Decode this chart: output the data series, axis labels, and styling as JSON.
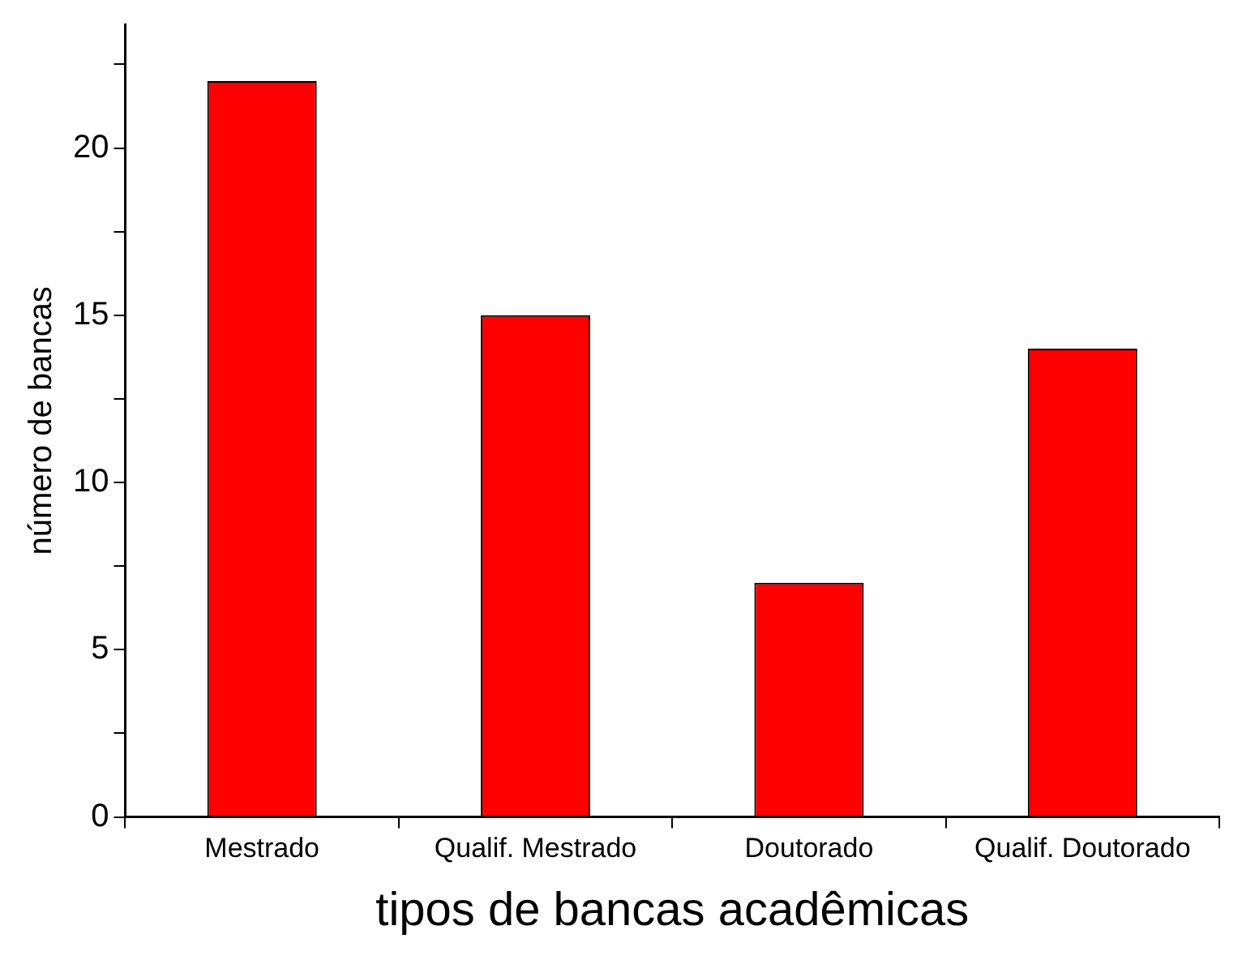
{
  "chart_data": {
    "type": "bar",
    "xlabel": "tipos de bancas acadêmicas",
    "ylabel": "número de bancas",
    "categories": [
      "Mestrado",
      "Qualif. Mestrado",
      "Doutorado",
      "Qualif. Doutorado"
    ],
    "values": [
      22,
      15,
      7,
      14
    ],
    "color": "#ff0000",
    "ylim": [
      0,
      23.7
    ],
    "yticks": [
      0,
      {
        "value": 2.5,
        "label": null
      },
      5,
      {
        "value": 7.5,
        "label": null
      },
      10,
      {
        "value": 12.5,
        "label": null
      },
      15,
      {
        "value": 17.5,
        "label": null
      },
      20,
      {
        "value": 22.5,
        "label": null
      }
    ],
    "grid": false,
    "legend": false
  }
}
